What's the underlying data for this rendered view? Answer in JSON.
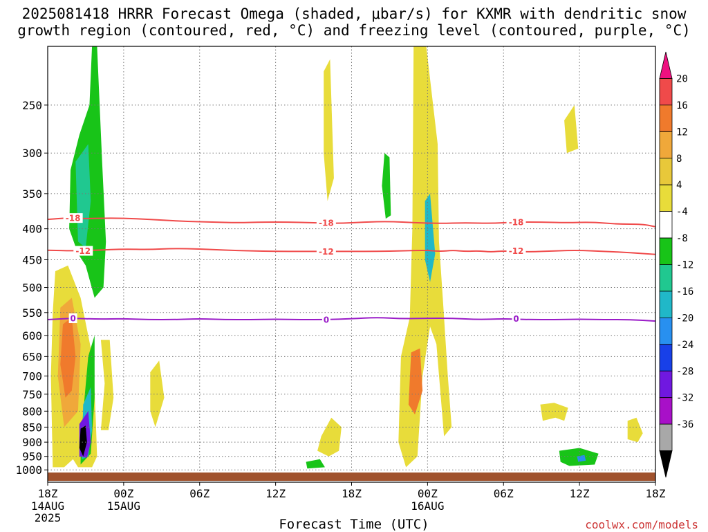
{
  "title": {
    "line1": "2025081418 HRRR Forecast Omega (shaded, μbar/s) for KXMR with dendritic snow",
    "line2": "growth region (contoured, red, °C) and freezing level (contoured, purple, °C)"
  },
  "credit": "coolwx.com/models",
  "chart_data": {
    "type": "heatmap",
    "title": "2025081418 HRRR Forecast Omega (shaded, μbar/s) for KXMR with dendritic snow growth region (contoured, red, °C) and freezing level (contoured, purple, °C)",
    "xlabel": "Forecast Time (UTC)",
    "ylabel": "",
    "x_unit": "forecast hour",
    "x_range": [
      0,
      48
    ],
    "y_unit": "hPa",
    "y_axis_scale": "log-pressure",
    "y_range": [
      1000,
      200
    ],
    "y_ticks": [
      250,
      300,
      350,
      400,
      450,
      500,
      550,
      600,
      650,
      700,
      750,
      800,
      850,
      900,
      950,
      1000
    ],
    "x_ticks": [
      {
        "hour": 0,
        "label": "18Z",
        "date": "14AUG",
        "year": "2025"
      },
      {
        "hour": 6,
        "label": "00Z",
        "date": "15AUG",
        "year": ""
      },
      {
        "hour": 12,
        "label": "06Z",
        "date": "",
        "year": ""
      },
      {
        "hour": 18,
        "label": "12Z",
        "date": "",
        "year": ""
      },
      {
        "hour": 24,
        "label": "18Z",
        "date": "",
        "year": ""
      },
      {
        "hour": 30,
        "label": "00Z",
        "date": "16AUG",
        "year": ""
      },
      {
        "hour": 36,
        "label": "06Z",
        "date": "",
        "year": ""
      },
      {
        "hour": 42,
        "label": "12Z",
        "date": "",
        "year": ""
      },
      {
        "hour": 48,
        "label": "18Z",
        "date": "",
        "year": ""
      }
    ],
    "grid": true,
    "colorbar": {
      "unit": "μbar/s",
      "labels": [
        20,
        16,
        12,
        8,
        4,
        -4,
        -8,
        -12,
        -16,
        -20,
        -24,
        -28,
        -32,
        -36
      ],
      "colors": [
        "#ee1180",
        "#f04a4a",
        "#f07a2c",
        "#f0a83a",
        "#e8c83a",
        "#e8dc3a",
        "#ffffff",
        "#18c418",
        "#20c890",
        "#20b8c8",
        "#2890f0",
        "#1840e8",
        "#7018e0",
        "#a810c8",
        "#a8a8a8",
        "#000000"
      ]
    },
    "contours": [
      {
        "name": "dendritic snow growth region top",
        "label": "-18",
        "color": "#f04a4a",
        "points": [
          [
            0,
            386
          ],
          [
            1.5,
            384
          ],
          [
            3,
            385
          ],
          [
            5,
            384
          ],
          [
            7,
            385
          ],
          [
            9,
            387
          ],
          [
            11,
            389
          ],
          [
            13,
            390
          ],
          [
            15,
            391
          ],
          [
            17,
            390
          ],
          [
            19,
            390
          ],
          [
            21,
            391
          ],
          [
            23,
            392
          ],
          [
            25,
            390
          ],
          [
            27,
            389
          ],
          [
            29,
            391
          ],
          [
            31,
            392
          ],
          [
            33,
            391
          ],
          [
            35,
            392
          ],
          [
            37,
            390
          ],
          [
            39,
            390
          ],
          [
            41,
            391
          ],
          [
            43,
            390
          ],
          [
            45,
            393
          ],
          [
            47,
            393
          ],
          [
            48,
            397
          ]
        ]
      },
      {
        "name": "dendritic snow growth region bottom",
        "label": "-12",
        "color": "#f04a4a",
        "points": [
          [
            0,
            434
          ],
          [
            2,
            435
          ],
          [
            4,
            434
          ],
          [
            6,
            432
          ],
          [
            8,
            433
          ],
          [
            10,
            431
          ],
          [
            12,
            432
          ],
          [
            14,
            434
          ],
          [
            16,
            435
          ],
          [
            18,
            436
          ],
          [
            20,
            436
          ],
          [
            22,
            436
          ],
          [
            24,
            436
          ],
          [
            26,
            436
          ],
          [
            28,
            435
          ],
          [
            30,
            434
          ],
          [
            31,
            436
          ],
          [
            32,
            434
          ],
          [
            33,
            436
          ],
          [
            34,
            435
          ],
          [
            35,
            437
          ],
          [
            36,
            435
          ],
          [
            38,
            437
          ],
          [
            40,
            435
          ],
          [
            42,
            434
          ],
          [
            44,
            436
          ],
          [
            46,
            438
          ],
          [
            48,
            441
          ]
        ]
      },
      {
        "name": "freezing level",
        "label": "0",
        "color": "#9a1cc8",
        "points": [
          [
            0,
            565
          ],
          [
            2,
            562
          ],
          [
            4,
            564
          ],
          [
            6,
            563
          ],
          [
            8,
            565
          ],
          [
            10,
            565
          ],
          [
            12,
            563
          ],
          [
            14,
            565
          ],
          [
            16,
            565
          ],
          [
            18,
            564
          ],
          [
            20,
            565
          ],
          [
            22,
            565
          ],
          [
            24,
            563
          ],
          [
            26,
            560
          ],
          [
            28,
            563
          ],
          [
            30,
            562
          ],
          [
            32,
            562
          ],
          [
            34,
            565
          ],
          [
            36,
            563
          ],
          [
            38,
            565
          ],
          [
            40,
            565
          ],
          [
            42,
            564
          ],
          [
            44,
            565
          ],
          [
            46,
            565
          ],
          [
            48,
            568
          ]
        ]
      }
    ],
    "shaded_regions": [
      {
        "value_range": [
          4,
          8
        ],
        "color": "#e8dc3a",
        "polygon": [
          [
            0.6,
            470
          ],
          [
            1.6,
            460
          ],
          [
            2.6,
            520
          ],
          [
            3.6,
            660
          ],
          [
            3.8,
            830
          ],
          [
            3.9,
            950
          ],
          [
            3.5,
            990
          ],
          [
            2.4,
            990
          ],
          [
            2.0,
            960
          ],
          [
            1.3,
            990
          ],
          [
            0.4,
            990
          ],
          [
            0.25,
            700
          ],
          [
            0.4,
            550
          ]
        ]
      },
      {
        "value_range": [
          8,
          12
        ],
        "color": "#f0a83a",
        "polygon": [
          [
            1.0,
            540
          ],
          [
            1.9,
            520
          ],
          [
            2.6,
            620
          ],
          [
            2.4,
            800
          ],
          [
            1.3,
            850
          ],
          [
            0.8,
            700
          ]
        ]
      },
      {
        "value_range": [
          12,
          16
        ],
        "color": "#f07a2c",
        "polygon": [
          [
            1.2,
            575
          ],
          [
            1.9,
            560
          ],
          [
            2.2,
            650
          ],
          [
            1.9,
            740
          ],
          [
            1.4,
            760
          ],
          [
            1.0,
            670
          ]
        ]
      },
      {
        "value_range": [
          -8,
          -4
        ],
        "color": "#18c418",
        "polygon": [
          [
            1.8,
            320
          ],
          [
            2.5,
            280
          ],
          [
            3.3,
            250
          ],
          [
            3.5,
            200
          ],
          [
            3.9,
            200
          ],
          [
            4.3,
            310
          ],
          [
            4.6,
            420
          ],
          [
            4.4,
            500
          ],
          [
            3.7,
            520
          ],
          [
            3.0,
            460
          ],
          [
            2.4,
            440
          ],
          [
            1.7,
            400
          ]
        ]
      },
      {
        "value_range": [
          -12,
          -8
        ],
        "color": "#20c890",
        "polygon": [
          [
            2.2,
            310
          ],
          [
            3.2,
            290
          ],
          [
            3.4,
            360
          ],
          [
            3.0,
            430
          ],
          [
            2.4,
            420
          ]
        ]
      },
      {
        "value_range": [
          -8,
          -4
        ],
        "color": "#18c418",
        "polygon": [
          [
            3.2,
            650
          ],
          [
            3.7,
            600
          ],
          [
            3.7,
            760
          ],
          [
            3.4,
            940
          ],
          [
            2.6,
            980
          ],
          [
            2.6,
            900
          ]
        ]
      },
      {
        "value_range": [
          -16,
          -12
        ],
        "color": "#20b8c8",
        "polygon": [
          [
            2.8,
            780
          ],
          [
            3.4,
            730
          ],
          [
            3.5,
            860
          ],
          [
            3.2,
            950
          ],
          [
            2.7,
            960
          ]
        ]
      },
      {
        "value_range": [
          -28,
          -24
        ],
        "color": "#7018e0",
        "polygon": [
          [
            2.5,
            840
          ],
          [
            3.2,
            800
          ],
          [
            3.4,
            900
          ],
          [
            3.1,
            955
          ],
          [
            2.5,
            950
          ]
        ]
      },
      {
        "value_range": [
          -36,
          -32
        ],
        "color": "#000000",
        "polygon": [
          [
            2.6,
            855
          ],
          [
            3.0,
            845
          ],
          [
            3.1,
            900
          ],
          [
            2.8,
            950
          ],
          [
            2.5,
            920
          ]
        ]
      },
      {
        "value_range": [
          4,
          8
        ],
        "color": "#e8dc3a",
        "polygon": [
          [
            28.9,
            200
          ],
          [
            29.9,
            200
          ],
          [
            30.8,
            290
          ],
          [
            30.9,
            420
          ],
          [
            31.2,
            520
          ],
          [
            31.6,
            700
          ],
          [
            31.9,
            850
          ],
          [
            31.3,
            880
          ],
          [
            30.7,
            620
          ],
          [
            30.2,
            580
          ],
          [
            29.6,
            700
          ],
          [
            29.2,
            950
          ],
          [
            28.3,
            990
          ],
          [
            27.7,
            900
          ],
          [
            27.9,
            650
          ],
          [
            28.6,
            560
          ],
          [
            28.8,
            400
          ]
        ]
      },
      {
        "value_range": [
          8,
          16
        ],
        "color": "#f07a2c",
        "polygon": [
          [
            28.7,
            640
          ],
          [
            29.4,
            630
          ],
          [
            29.6,
            740
          ],
          [
            29.0,
            810
          ],
          [
            28.5,
            780
          ]
        ]
      },
      {
        "value_range": [
          -12,
          -4
        ],
        "color": "#20b8c8",
        "polygon": [
          [
            29.8,
            360
          ],
          [
            30.2,
            350
          ],
          [
            30.6,
            440
          ],
          [
            30.2,
            490
          ],
          [
            29.8,
            450
          ]
        ]
      },
      {
        "value_range": [
          -8,
          -4
        ],
        "color": "#18c418",
        "polygon": [
          [
            40.4,
            930
          ],
          [
            42.0,
            920
          ],
          [
            43.5,
            940
          ],
          [
            43.2,
            980
          ],
          [
            41.2,
            985
          ],
          [
            40.5,
            970
          ]
        ]
      },
      {
        "value_range": [
          -16,
          -12
        ],
        "color": "#2890f0",
        "polygon": [
          [
            41.8,
            950
          ],
          [
            42.4,
            945
          ],
          [
            42.5,
            965
          ],
          [
            41.9,
            970
          ]
        ]
      },
      {
        "value_range": [
          4,
          8
        ],
        "color": "#e8dc3a",
        "polygon": [
          [
            40.8,
            265
          ],
          [
            41.6,
            250
          ],
          [
            41.9,
            295
          ],
          [
            41.0,
            300
          ]
        ]
      },
      {
        "value_range": [
          4,
          8
        ],
        "color": "#e8dc3a",
        "polygon": [
          [
            21.8,
            220
          ],
          [
            22.3,
            210
          ],
          [
            22.6,
            330
          ],
          [
            22.1,
            360
          ],
          [
            21.8,
            300
          ]
        ]
      },
      {
        "value_range": [
          -8,
          -4
        ],
        "color": "#18c418",
        "polygon": [
          [
            26.6,
            300
          ],
          [
            27.0,
            305
          ],
          [
            27.1,
            380
          ],
          [
            26.7,
            385
          ],
          [
            26.4,
            340
          ]
        ]
      },
      {
        "value_range": [
          4,
          8
        ],
        "color": "#e8dc3a",
        "polygon": [
          [
            4.2,
            610
          ],
          [
            4.9,
            610
          ],
          [
            5.2,
            760
          ],
          [
            4.8,
            860
          ],
          [
            4.2,
            860
          ],
          [
            4.5,
            720
          ]
        ]
      },
      {
        "value_range": [
          4,
          8
        ],
        "color": "#e8dc3a",
        "polygon": [
          [
            8.1,
            690
          ],
          [
            8.8,
            660
          ],
          [
            9.2,
            760
          ],
          [
            8.5,
            850
          ],
          [
            8.1,
            800
          ]
        ]
      },
      {
        "value_range": [
          4,
          8
        ],
        "color": "#e8dc3a",
        "polygon": [
          [
            21.6,
            880
          ],
          [
            22.4,
            820
          ],
          [
            23.2,
            850
          ],
          [
            23.0,
            930
          ],
          [
            22.2,
            950
          ],
          [
            21.3,
            930
          ]
        ]
      },
      {
        "value_range": [
          -8,
          -4
        ],
        "color": "#18c418",
        "polygon": [
          [
            20.4,
            970
          ],
          [
            21.5,
            960
          ],
          [
            21.9,
            990
          ],
          [
            20.5,
            995
          ]
        ]
      },
      {
        "value_range": [
          4,
          8
        ],
        "color": "#e8dc3a",
        "polygon": [
          [
            38.9,
            780
          ],
          [
            40.0,
            775
          ],
          [
            41.1,
            790
          ],
          [
            40.8,
            830
          ],
          [
            40.1,
            820
          ],
          [
            39.1,
            830
          ]
        ]
      },
      {
        "value_range": [
          4,
          8
        ],
        "color": "#e8dc3a",
        "polygon": [
          [
            45.8,
            830
          ],
          [
            46.5,
            820
          ],
          [
            47.0,
            870
          ],
          [
            46.6,
            900
          ],
          [
            45.8,
            890
          ]
        ]
      }
    ],
    "surface_ground_color": "#a0522d"
  }
}
